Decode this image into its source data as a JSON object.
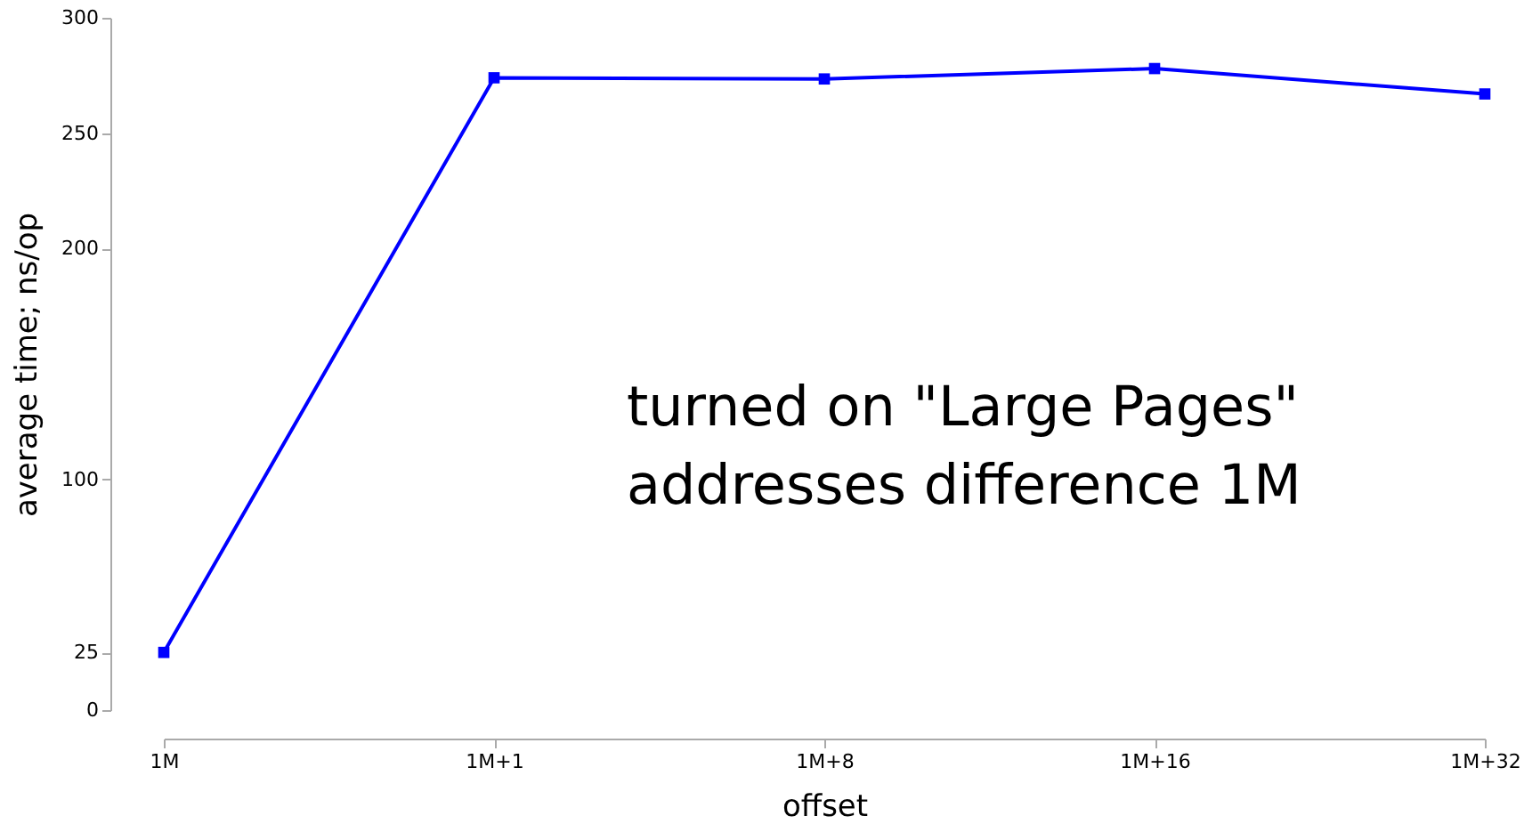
{
  "chart_data": {
    "type": "line",
    "xlabel": "offset",
    "ylabel": "average time; ns/op",
    "categories": [
      "1M",
      "1M+1",
      "1M+8",
      "1M+16",
      "1M+32"
    ],
    "series": [
      {
        "color": "#0000ff",
        "values": [
          25,
          274,
          273.5,
          278,
          267
        ]
      }
    ],
    "ylim": [
      0,
      300
    ],
    "yticks": [
      0,
      25,
      100,
      200,
      250,
      300
    ],
    "marker": "square",
    "line_style": "solid",
    "grid": false,
    "annotations": [
      "turned on \"Large Pages\"\naddresses difference 1M"
    ]
  }
}
